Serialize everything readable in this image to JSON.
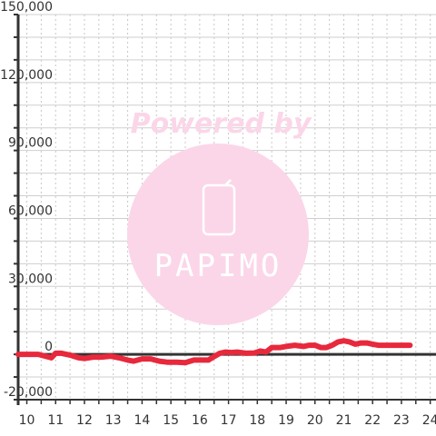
{
  "chart_data": {
    "type": "line",
    "title": "",
    "xlabel": "",
    "ylabel": "",
    "xlim": [
      9.7,
      24.2
    ],
    "ylim": [
      -20000,
      150000
    ],
    "x_ticks": [
      "10",
      "11",
      "12",
      "13",
      "14",
      "15",
      "16",
      "17",
      "18",
      "19",
      "20",
      "21",
      "22",
      "23",
      "24"
    ],
    "y_ticks": [
      "150,000",
      "120,000",
      "90,000",
      "60,000",
      "30,000",
      "0",
      "-20,000"
    ],
    "grid": true,
    "legend": "none",
    "series": [
      {
        "color": "#e8283c",
        "x": [
          9.7,
          10.0,
          10.4,
          10.7,
          10.85,
          11.0,
          11.2,
          11.5,
          11.8,
          12.0,
          12.3,
          12.6,
          12.9,
          13.2,
          13.5,
          13.7,
          14.0,
          14.3,
          14.6,
          14.9,
          15.2,
          15.5,
          15.8,
          16.0,
          16.3,
          16.5,
          16.7,
          16.9,
          17.1,
          17.3,
          17.6,
          17.9,
          18.1,
          18.3,
          18.5,
          18.8,
          19.0,
          19.3,
          19.6,
          19.8,
          20.0,
          20.2,
          20.4,
          20.6,
          20.8,
          21.0,
          21.2,
          21.4,
          21.6,
          21.8,
          22.0,
          22.2,
          22.5,
          22.8,
          23.1,
          23.3
        ],
        "y": [
          0,
          0,
          0,
          -1000,
          -1500,
          500,
          500,
          -300,
          -1500,
          -1800,
          -1200,
          -1200,
          -800,
          -1500,
          -2500,
          -3000,
          -2000,
          -2000,
          -3000,
          -3500,
          -3500,
          -3700,
          -2500,
          -2500,
          -2500,
          -1000,
          500,
          1000,
          800,
          1000,
          500,
          600,
          1500,
          1000,
          3000,
          3000,
          3500,
          4000,
          3500,
          4000,
          4000,
          3000,
          3000,
          4000,
          5500,
          6000,
          5500,
          4500,
          5000,
          5000,
          4500,
          4000,
          4000,
          4000,
          4000,
          4000
        ]
      }
    ]
  },
  "watermark": {
    "heading": "Powered by",
    "brand": "PAPIMO",
    "color": "#fbd6e8"
  }
}
